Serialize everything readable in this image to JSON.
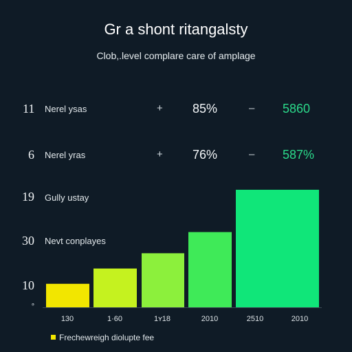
{
  "header": {
    "title": "Gr a shont ritangalsty",
    "subtitle": "Clob,.level complare care of amplage"
  },
  "summary_rows": [
    {
      "num": "11",
      "label": "Nerel ysas",
      "sign_left": "+",
      "pct": "85%",
      "sign_right": "–",
      "value": "5860"
    },
    {
      "num": "6",
      "label": "Nerel yras",
      "sign_left": "+",
      "pct": "76%",
      "sign_right": "–",
      "value": "587%"
    }
  ],
  "axis_labels": [
    {
      "num": "19",
      "label": "Gully ustay"
    },
    {
      "num": "30",
      "label": "Nevt conplayes"
    },
    {
      "num": "10",
      "label": ""
    }
  ],
  "small_mark": "ₔ",
  "legend": {
    "label": "Frechewreigh diolupte fee",
    "color": "#f2e600"
  },
  "chart_data": {
    "type": "bar",
    "categories": [
      "130",
      "1·60",
      "1ʏ18",
      "2010",
      "2510",
      "2010"
    ],
    "values": [
      20,
      33,
      46,
      64,
      100,
      100
    ],
    "colors": [
      "#f2e600",
      "#c5f21f",
      "#8cf03c",
      "#3fea58",
      "#10e679",
      "#12e87f"
    ],
    "title": "",
    "xlabel": "",
    "ylabel": "",
    "ylim": [
      0,
      100
    ]
  }
}
